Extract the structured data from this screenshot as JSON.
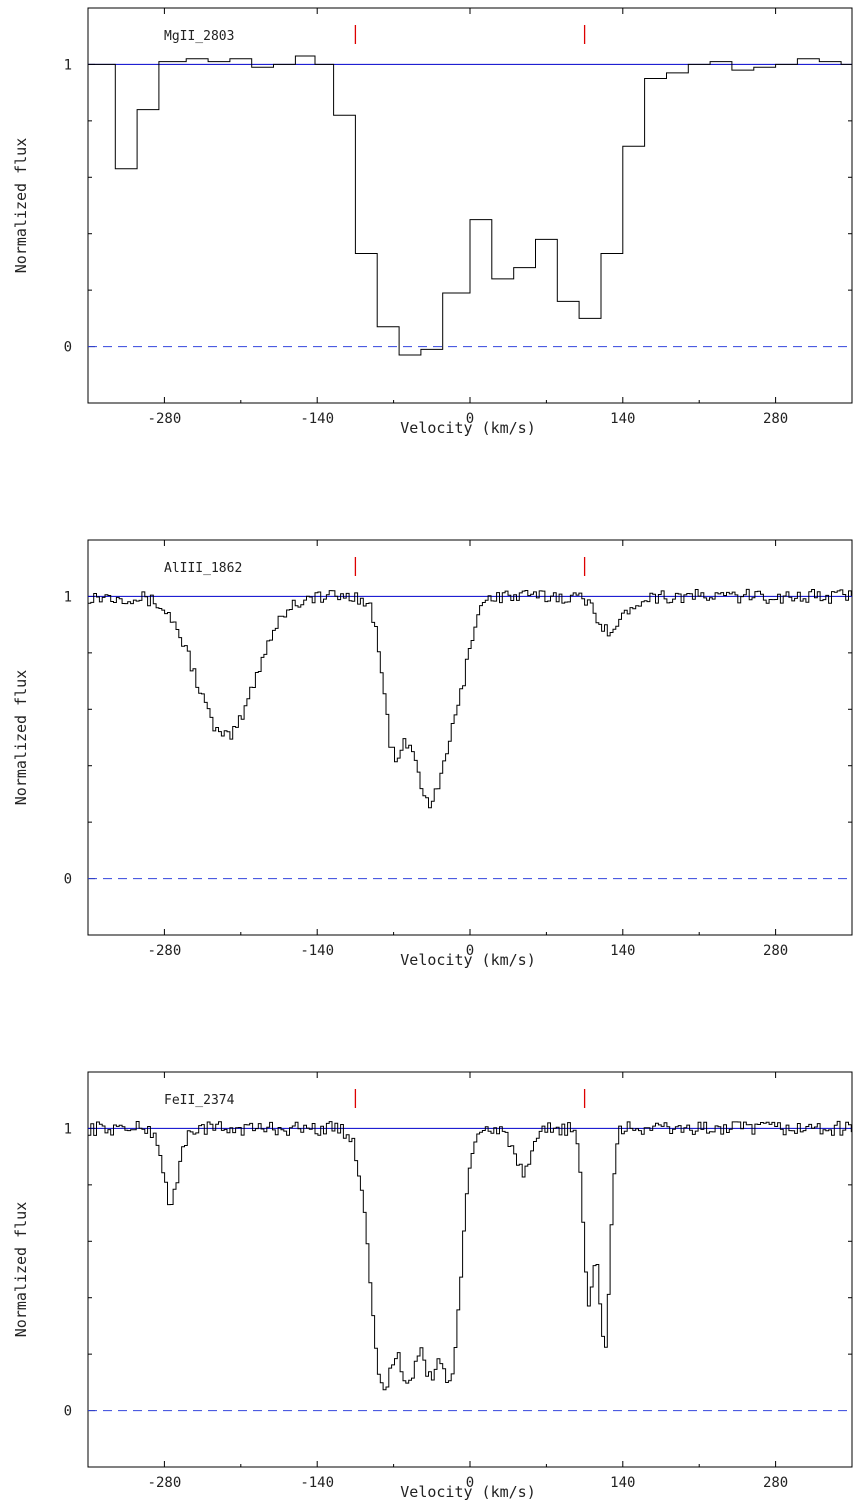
{
  "chart_data": [
    {
      "type": "line",
      "panel_label": "MgII_2803",
      "xlabel": "Velocity (km/s)",
      "ylabel": "Normalized flux",
      "xlim": [
        -350,
        350
      ],
      "ylim": [
        -0.2,
        1.2
      ],
      "x_ticks": [
        -280,
        -140,
        0,
        140,
        280
      ],
      "x_tick_labels": [
        "-280",
        "-140",
        "0",
        "140",
        "280"
      ],
      "y_ticks": [
        0,
        1
      ],
      "y_tick_labels": [
        "0",
        "1"
      ],
      "continuum_level": 1,
      "zero_level": 0,
      "component_markers_x": [
        -105,
        105
      ],
      "line_colors": {
        "spectrum": "#000000",
        "continuum": "#0000cc",
        "zero": "#3344dd",
        "marker": "#dd0000"
      },
      "step": {
        "x": [
          -350,
          -325,
          -305,
          -285,
          -260,
          -240,
          -220,
          -200,
          -180,
          -160,
          -142,
          -125,
          -105,
          -85,
          -65,
          -45,
          -25,
          0,
          20,
          40,
          60,
          80,
          100,
          120,
          140,
          160,
          180,
          200,
          220,
          240,
          260,
          280,
          300,
          320,
          340,
          350
        ],
        "y": [
          1.0,
          0.63,
          0.84,
          1.01,
          1.02,
          1.01,
          1.02,
          0.99,
          1.0,
          1.03,
          1.0,
          0.82,
          0.33,
          0.07,
          -0.03,
          -0.01,
          0.19,
          0.45,
          0.24,
          0.28,
          0.38,
          0.16,
          0.1,
          0.33,
          0.71,
          0.95,
          0.97,
          1.0,
          1.01,
          0.98,
          0.99,
          1.0,
          1.02,
          1.01,
          1.0,
          1.0
        ]
      }
    },
    {
      "type": "line",
      "panel_label": "AlIII_1862",
      "xlabel": "Velocity (km/s)",
      "ylabel": "Normalized flux",
      "xlim": [
        -350,
        350
      ],
      "ylim": [
        -0.2,
        1.2
      ],
      "x_ticks": [
        -280,
        -140,
        0,
        140,
        280
      ],
      "x_tick_labels": [
        "-280",
        "-140",
        "0",
        "140",
        "280"
      ],
      "y_ticks": [
        0,
        1
      ],
      "y_tick_labels": [
        "0",
        "1"
      ],
      "continuum_level": 1,
      "zero_level": 0,
      "component_markers_x": [
        -105,
        105
      ],
      "line_colors": {
        "spectrum": "#000000",
        "continuum": "#0000cc",
        "zero": "#3344dd",
        "marker": "#dd0000"
      },
      "dip_profile": [
        {
          "center": -225,
          "depth": 0.5,
          "width": 26
        },
        {
          "center": -70,
          "depth": 0.55,
          "width": 10
        },
        {
          "center": -50,
          "depth": 0.4,
          "width": 10
        },
        {
          "center": -38,
          "depth": 0.55,
          "width": 10
        },
        {
          "center": -28,
          "depth": 0.4,
          "width": 10
        },
        {
          "center": -12,
          "depth": 0.3,
          "width": 10
        },
        {
          "center": 128,
          "depth": 0.12,
          "width": 12
        }
      ]
    },
    {
      "type": "line",
      "panel_label": "FeII_2374",
      "xlabel": "Velocity (km/s)",
      "ylabel": "Normalized flux",
      "xlim": [
        -350,
        350
      ],
      "ylim": [
        -0.2,
        1.2
      ],
      "x_ticks": [
        -280,
        -140,
        0,
        140,
        280
      ],
      "x_tick_labels": [
        "-280",
        "-140",
        "0",
        "140",
        "280"
      ],
      "y_ticks": [
        0,
        1
      ],
      "y_tick_labels": [
        "0",
        "1"
      ],
      "continuum_level": 1,
      "zero_level": 0,
      "component_markers_x": [
        -105,
        105
      ],
      "line_colors": {
        "spectrum": "#000000",
        "continuum": "#0000cc",
        "zero": "#3344dd",
        "marker": "#dd0000"
      },
      "dip_profile": [
        {
          "center": -275,
          "depth": 0.26,
          "width": 7
        },
        {
          "center": -80,
          "depth": 0.92,
          "width": 12
        },
        {
          "center": -58,
          "depth": 0.9,
          "width": 10
        },
        {
          "center": -38,
          "depth": 0.84,
          "width": 10
        },
        {
          "center": -20,
          "depth": 0.88,
          "width": 10
        },
        {
          "center": 48,
          "depth": 0.16,
          "width": 8
        },
        {
          "center": 108,
          "depth": 0.62,
          "width": 5
        },
        {
          "center": 122,
          "depth": 0.78,
          "width": 5
        }
      ]
    }
  ]
}
